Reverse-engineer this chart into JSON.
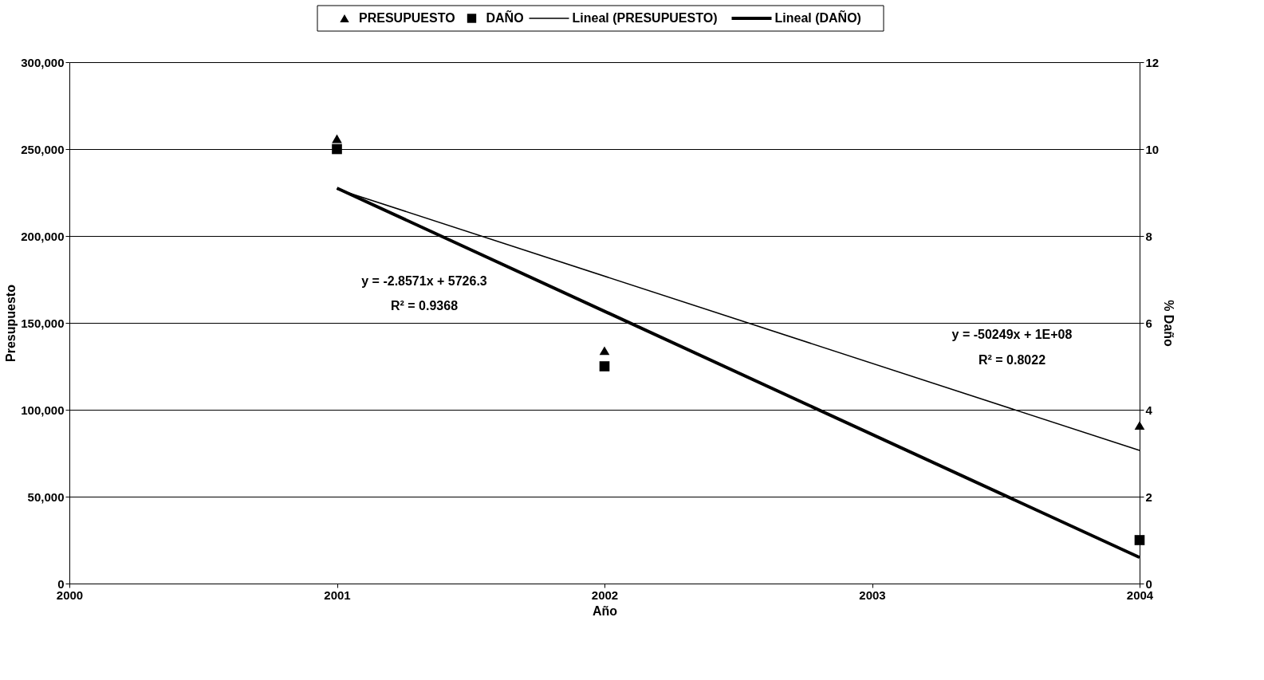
{
  "chart_data": {
    "type": "scatter",
    "xlabel": "Año",
    "ylabel": "Presupuesto",
    "y2label": "% Daño",
    "xlim": [
      2000,
      2004
    ],
    "xticks": [
      2000,
      2001,
      2002,
      2003,
      2004
    ],
    "ylim": [
      0,
      300000
    ],
    "yticks": [
      {
        "value": 0,
        "label": "0"
      },
      {
        "value": 50000,
        "label": "50,000"
      },
      {
        "value": 100000,
        "label": "100,000"
      },
      {
        "value": 150000,
        "label": "150,000"
      },
      {
        "value": 200000,
        "label": "200,000"
      },
      {
        "value": 250000,
        "label": "250,000"
      },
      {
        "value": 300000,
        "label": "300,000"
      }
    ],
    "y2lim": [
      0,
      12
    ],
    "y2ticks": [
      0,
      2,
      4,
      6,
      8,
      10,
      12
    ],
    "grid": "y",
    "legend": "top",
    "series": [
      {
        "name": "PRESUPUESTO",
        "marker": "triangle",
        "color": "#000000",
        "x": [
          2001,
          2002,
          2004
        ],
        "values": [
          256000,
          134000,
          91000
        ]
      },
      {
        "name": "DAÑO",
        "type": "scatter",
        "marker": "square",
        "color": "#000000",
        "axis": "y2",
        "x": [
          2001,
          2002,
          2004
        ],
        "values": [
          10,
          5,
          1
        ]
      },
      {
        "name": "Lineal (PRESUPUESTO)",
        "type": "line",
        "line_style": "solid",
        "color": "#000000",
        "x": [
          2001,
          2004
        ],
        "values": [
          227000,
          76600
        ]
      },
      {
        "name": "Lineal (DAÑO)",
        "type": "line",
        "line_style": "solid",
        "color": "#000000",
        "axis": "y2",
        "x": [
          2001,
          2004
        ],
        "values": [
          9.1,
          0.6
        ]
      }
    ],
    "annotations": [
      "y = -2.8571x + 5726.3",
      "R² = 0.9368",
      "y = -50249x + 1E+08",
      "R² = 0.8022"
    ]
  }
}
